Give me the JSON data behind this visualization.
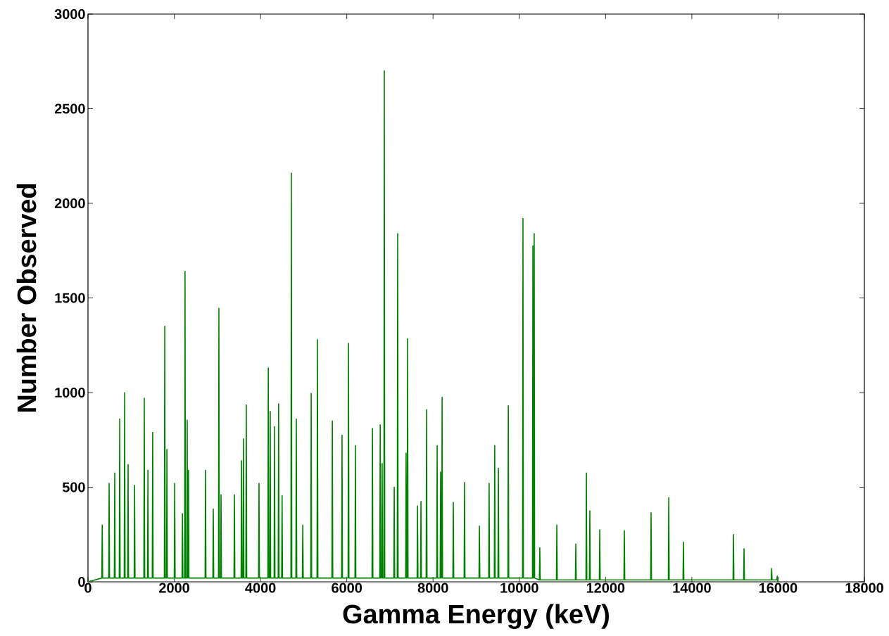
{
  "chart_data": {
    "type": "line",
    "xlabel": "Gamma Energy (keV)",
    "ylabel": "Number Observed",
    "xlim": [
      0,
      18000
    ],
    "ylim": [
      0,
      3000
    ],
    "xticks": [
      0,
      2000,
      4000,
      6000,
      8000,
      10000,
      12000,
      14000,
      16000,
      18000
    ],
    "yticks": [
      0,
      500,
      1000,
      1500,
      2000,
      2500,
      3000
    ],
    "series": [
      {
        "color": "#008000",
        "x": [
          0,
          320,
          330,
          340,
          480,
          490,
          500,
          610,
          620,
          630,
          725,
          735,
          745,
          840,
          850,
          860,
          920,
          930,
          940,
          1070,
          1080,
          1090,
          1295,
          1305,
          1315,
          1380,
          1390,
          1400,
          1490,
          1500,
          1510,
          1770,
          1780,
          1790,
          1820,
          1830,
          1840,
          2000,
          2010,
          2020,
          2180,
          2190,
          2200,
          2240,
          2250,
          2260,
          2290,
          2300,
          2310,
          2320,
          2330,
          2340,
          2715,
          2725,
          2735,
          2895,
          2905,
          2915,
          3025,
          3035,
          3045,
          3075,
          3085,
          3095,
          3385,
          3395,
          3405,
          3550,
          3560,
          3570,
          3595,
          3605,
          3615,
          3660,
          3670,
          3680,
          3955,
          3965,
          3975,
          4170,
          4180,
          4190,
          4215,
          4225,
          4235,
          4315,
          4325,
          4335,
          4410,
          4420,
          4430,
          4490,
          4500,
          4510,
          4705,
          4715,
          4725,
          4820,
          4830,
          4840,
          4970,
          4980,
          4990,
          5165,
          5175,
          5185,
          5310,
          5320,
          5330,
          5655,
          5665,
          5675,
          5880,
          5890,
          5900,
          6030,
          6040,
          6050,
          6190,
          6200,
          6210,
          6585,
          6595,
          6605,
          6765,
          6775,
          6785,
          6810,
          6820,
          6830,
          6860,
          6870,
          6880,
          7090,
          7100,
          7110,
          7170,
          7180,
          7190,
          7365,
          7375,
          7385,
          7400,
          7410,
          7420,
          7630,
          7640,
          7650,
          7710,
          7720,
          7730,
          7840,
          7850,
          7860,
          8085,
          8095,
          8105,
          8165,
          8175,
          8185,
          8200,
          8210,
          8220,
          8460,
          8470,
          8480,
          8720,
          8730,
          8740,
          9065,
          9075,
          9085,
          9290,
          9300,
          9310,
          9420,
          9430,
          9440,
          9505,
          9515,
          9525,
          9735,
          9745,
          9755,
          10075,
          10085,
          10095,
          10305,
          10315,
          10325,
          10335,
          10345,
          10355,
          10465,
          10475,
          10485,
          10860,
          10870,
          10880,
          11300,
          11310,
          11320,
          11545,
          11555,
          11565,
          11625,
          11635,
          11645,
          11855,
          11865,
          11875,
          12425,
          12435,
          12445,
          13045,
          13055,
          13065,
          13455,
          13465,
          13475,
          13795,
          13805,
          13815,
          14955,
          14965,
          14975,
          15200,
          15210,
          15220,
          15840,
          15850,
          15860,
          15970,
          15980,
          15990,
          16000
        ],
        "values": [
          0,
          20,
          300,
          20,
          20,
          520,
          20,
          20,
          575,
          20,
          20,
          860,
          20,
          20,
          1000,
          20,
          20,
          620,
          20,
          20,
          510,
          20,
          20,
          970,
          20,
          20,
          590,
          20,
          20,
          790,
          20,
          20,
          1350,
          20,
          20,
          700,
          20,
          20,
          520,
          20,
          20,
          360,
          20,
          20,
          1640,
          20,
          20,
          855,
          20,
          20,
          590,
          20,
          20,
          590,
          20,
          20,
          385,
          20,
          20,
          1445,
          20,
          20,
          460,
          20,
          20,
          460,
          20,
          20,
          640,
          20,
          20,
          755,
          20,
          20,
          935,
          20,
          20,
          520,
          20,
          20,
          1130,
          20,
          20,
          900,
          20,
          20,
          820,
          20,
          20,
          940,
          20,
          20,
          455,
          20,
          20,
          2160,
          20,
          20,
          860,
          20,
          20,
          300,
          20,
          20,
          995,
          20,
          20,
          1280,
          20,
          20,
          850,
          20,
          20,
          775,
          20,
          20,
          1260,
          20,
          20,
          720,
          20,
          20,
          810,
          20,
          20,
          830,
          20,
          20,
          625,
          20,
          20,
          2700,
          20,
          20,
          500,
          20,
          20,
          1840,
          20,
          20,
          680,
          20,
          20,
          1285,
          20,
          20,
          400,
          20,
          20,
          425,
          20,
          20,
          910,
          20,
          20,
          720,
          20,
          20,
          580,
          20,
          20,
          975,
          20,
          20,
          420,
          20,
          20,
          525,
          20,
          20,
          295,
          20,
          20,
          520,
          20,
          20,
          720,
          20,
          20,
          600,
          20,
          20,
          930,
          20,
          20,
          1920,
          20,
          20,
          1775,
          20,
          20,
          1840,
          20,
          10,
          180,
          10,
          10,
          300,
          10,
          10,
          200,
          10,
          10,
          575,
          10,
          10,
          375,
          10,
          10,
          275,
          10,
          10,
          270,
          10,
          10,
          365,
          10,
          10,
          445,
          10,
          10,
          210,
          10,
          10,
          250,
          10,
          10,
          175,
          10,
          10,
          70,
          10,
          10,
          30,
          0,
          0
        ]
      }
    ]
  }
}
